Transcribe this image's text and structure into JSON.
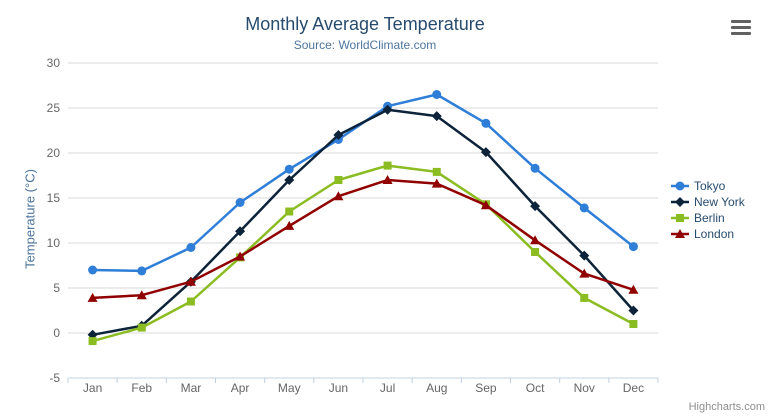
{
  "header": {
    "title": "Monthly Average Temperature",
    "subtitle": "Source: WorldClimate.com",
    "menu_icon": "hamburger-icon"
  },
  "credits": "Highcharts.com",
  "colors": {
    "title": "#274b6d",
    "subtitle": "#4d759e",
    "axis_label": "#666666",
    "axis_title": "#4d759e",
    "grid": "#d8d8d8",
    "axis_line": "#c0d0e0",
    "legend_text": "#274b6d",
    "credits": "#8f8f8f"
  },
  "chart_data": {
    "type": "line",
    "title": "Monthly Average Temperature",
    "subtitle": "Source: WorldClimate.com",
    "categories": [
      "Jan",
      "Feb",
      "Mar",
      "Apr",
      "May",
      "Jun",
      "Jul",
      "Aug",
      "Sep",
      "Oct",
      "Nov",
      "Dec"
    ],
    "xlabel": "",
    "ylabel": "Temperature (°C)",
    "ylim": [
      -5,
      30
    ],
    "yticks": [
      -5,
      0,
      5,
      10,
      15,
      20,
      25,
      30
    ],
    "grid": true,
    "legend_position": "right",
    "series": [
      {
        "name": "Tokyo",
        "color": "#2f7ed8",
        "marker": "circle",
        "values": [
          7.0,
          6.9,
          9.5,
          14.5,
          18.2,
          21.5,
          25.2,
          26.5,
          23.3,
          18.3,
          13.9,
          9.6
        ]
      },
      {
        "name": "New York",
        "color": "#0d233a",
        "marker": "diamond",
        "values": [
          -0.2,
          0.8,
          5.7,
          11.3,
          17.0,
          22.0,
          24.8,
          24.1,
          20.1,
          14.1,
          8.6,
          2.5
        ]
      },
      {
        "name": "Berlin",
        "color": "#8bbc21",
        "marker": "square",
        "values": [
          -0.9,
          0.6,
          3.5,
          8.4,
          13.5,
          17.0,
          18.6,
          17.9,
          14.3,
          9.0,
          3.9,
          1.0
        ]
      },
      {
        "name": "London",
        "color": "#910000",
        "marker": "triangle",
        "values": [
          3.9,
          4.2,
          5.7,
          8.5,
          11.9,
          15.2,
          17.0,
          16.6,
          14.2,
          10.3,
          6.6,
          4.8
        ]
      }
    ]
  }
}
